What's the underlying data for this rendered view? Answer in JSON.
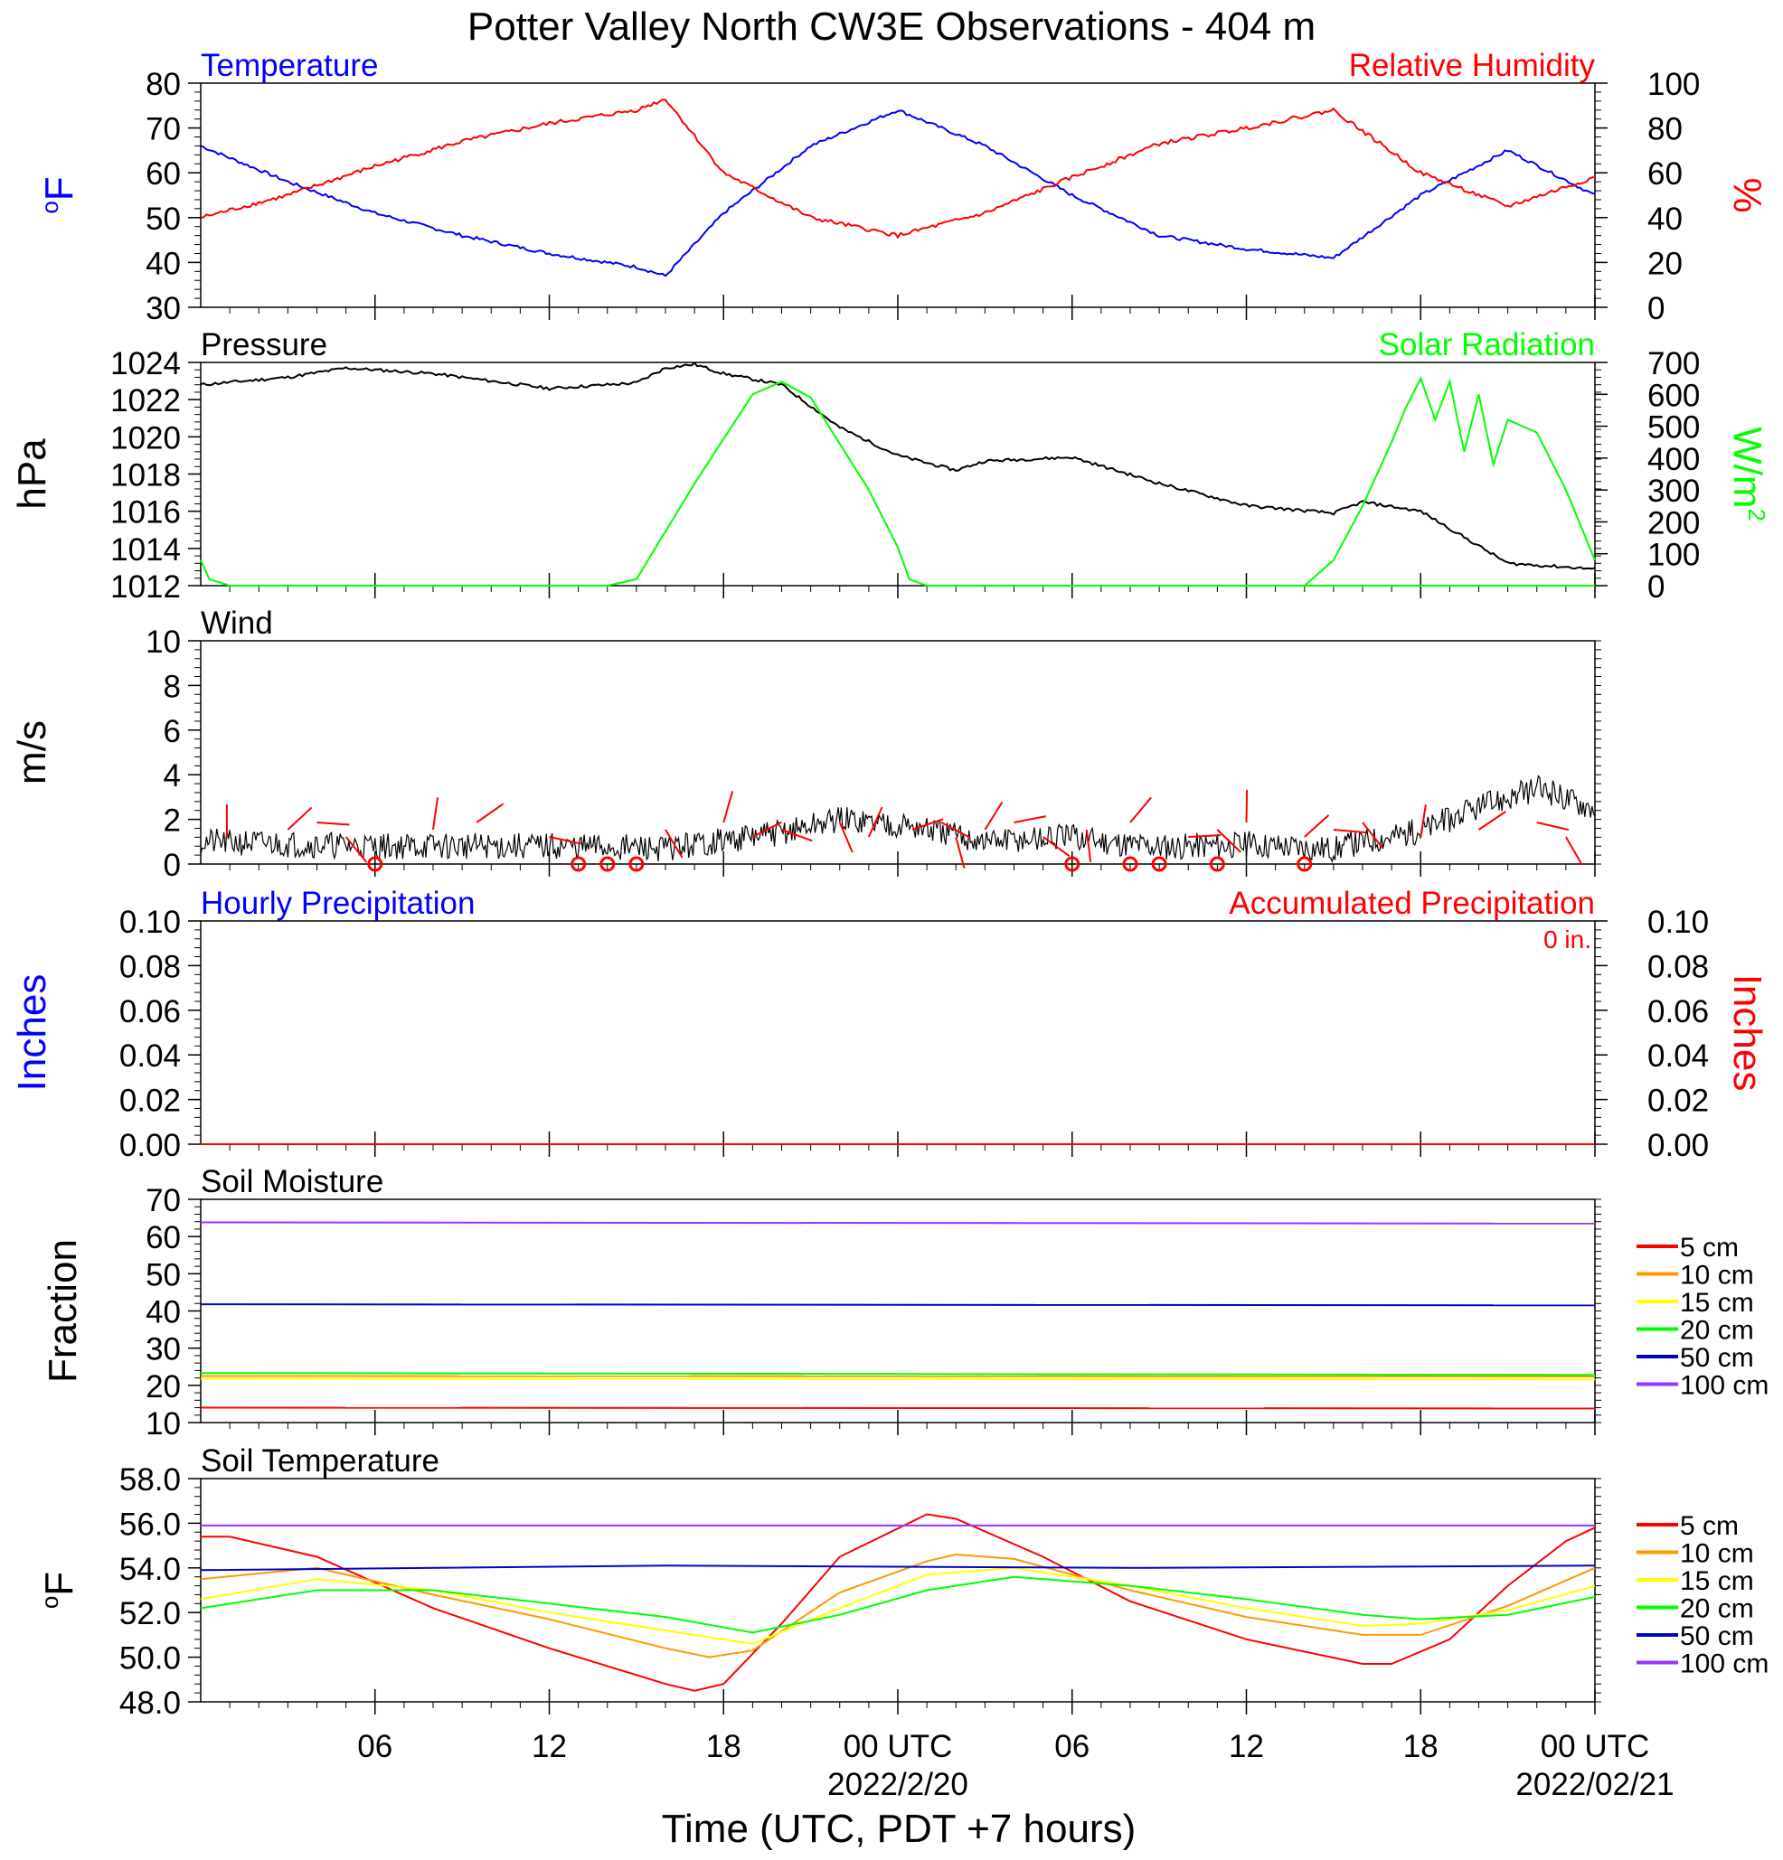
{
  "title": "Potter Valley North CW3E Observations - 404 m",
  "xlabel": "Time (UTC, PDT +7 hours)",
  "x_ticks": [
    {
      "label": "06",
      "date": ""
    },
    {
      "label": "12",
      "date": ""
    },
    {
      "label": "18",
      "date": ""
    },
    {
      "label": "00 UTC",
      "date": "2022/2/20"
    },
    {
      "label": "06",
      "date": ""
    },
    {
      "label": "12",
      "date": ""
    },
    {
      "label": "18",
      "date": ""
    },
    {
      "label": "00 UTC",
      "date": "2022/02/21"
    }
  ],
  "colors": {
    "blue": "#0000ff",
    "red": "#ff0000",
    "green": "#00ff00",
    "black": "#000000",
    "orange": "#ff9900",
    "yellow": "#ffff00",
    "navy": "#0000cc",
    "purple": "#9933ff"
  },
  "legend_soil": [
    {
      "label": "5 cm",
      "color": "#ff0000"
    },
    {
      "label": "10 cm",
      "color": "#ff9900"
    },
    {
      "label": "15 cm",
      "color": "#ffff00"
    },
    {
      "label": "20 cm",
      "color": "#00ff00"
    },
    {
      "label": "50 cm",
      "color": "#0000cc"
    },
    {
      "label": "100 cm",
      "color": "#9933ff"
    }
  ],
  "accum_value_label": "0 in.",
  "chart_data": [
    {
      "type": "line",
      "left_title": "Temperature",
      "right_title": "Relative Humidity",
      "ylabel_left": "oF",
      "ylabel_right": "%",
      "ylim_left": [
        30,
        80
      ],
      "ylim_right": [
        0,
        100
      ],
      "yticks_left": [
        "30",
        "40",
        "50",
        "60",
        "70",
        "80"
      ],
      "yticks_right": [
        "0",
        "20",
        "40",
        "60",
        "80",
        "100"
      ],
      "x_hours": [
        0,
        3,
        6,
        9,
        12,
        15,
        16,
        18,
        21,
        24,
        27,
        30,
        33,
        36,
        39,
        42,
        45,
        48
      ],
      "series": [
        {
          "name": "Temperature",
          "axis": "left",
          "color": "#0000ff",
          "values": [
            66,
            58,
            51,
            46,
            42,
            39,
            37,
            51,
            66,
            74,
            66,
            55,
            46,
            43,
            41,
            55,
            65,
            55
          ]
        },
        {
          "name": "Relative Humidity",
          "axis": "right",
          "color": "#ff0000",
          "values": [
            40,
            50,
            63,
            74,
            82,
            88,
            93,
            60,
            40,
            32,
            42,
            58,
            73,
            80,
            88,
            60,
            45,
            58
          ]
        }
      ]
    },
    {
      "type": "line",
      "left_title": "Pressure",
      "right_title": "Solar Radiation",
      "ylabel_left": "hPa",
      "ylabel_right": "W/m2",
      "ylim_left": [
        1012,
        1024
      ],
      "ylim_right": [
        0,
        700
      ],
      "yticks_left": [
        "1012",
        "1014",
        "1016",
        "1018",
        "1020",
        "1022",
        "1024"
      ],
      "yticks_right": [
        "0",
        "100",
        "200",
        "300",
        "400",
        "500",
        "600",
        "700"
      ],
      "series": [
        {
          "name": "Pressure",
          "axis": "left",
          "color": "#000000",
          "x": [
            0,
            3,
            5,
            8,
            12,
            15,
            16,
            17,
            18,
            20,
            22,
            24,
            26,
            27,
            30,
            33,
            36,
            39,
            40,
            42,
            45,
            48
          ],
          "values": [
            1022.8,
            1023.2,
            1023.7,
            1023.4,
            1022.6,
            1022.9,
            1023.7,
            1023.9,
            1023.4,
            1022.8,
            1020.5,
            1019.0,
            1018.2,
            1018.7,
            1018.9,
            1017.5,
            1016.3,
            1015.9,
            1016.5,
            1016.0,
            1013.2,
            1012.9
          ]
        },
        {
          "name": "Solar Radiation",
          "axis": "right",
          "color": "#00ff00",
          "x": [
            0,
            0.3,
            1,
            14,
            15,
            17,
            19,
            20,
            21,
            23,
            24,
            24.4,
            25,
            48
          ],
          "values": [
            80,
            20,
            0,
            0,
            20,
            320,
            600,
            640,
            590,
            300,
            120,
            20,
            0,
            0
          ],
          "x2": [
            38,
            39,
            40,
            41,
            41.5,
            42,
            42.5,
            43,
            43.5,
            44,
            44.5,
            45,
            46,
            47,
            48
          ],
          "values2": [
            0,
            80,
            250,
            450,
            560,
            650,
            520,
            640,
            420,
            600,
            380,
            520,
            480,
            300,
            80
          ]
        }
      ]
    },
    {
      "type": "line",
      "left_title": "Wind",
      "ylabel_left": "m/s",
      "ylim_left": [
        0,
        10
      ],
      "yticks_left": [
        "0",
        "2",
        "4",
        "6",
        "8",
        "10"
      ],
      "series": [
        {
          "name": "Wind",
          "axis": "left",
          "color": "#000000",
          "x": [
            0,
            6,
            12,
            16,
            20,
            22,
            24,
            27,
            30,
            32,
            33,
            36,
            39,
            40,
            42,
            44,
            46,
            48
          ],
          "values": [
            1.0,
            0.8,
            0.8,
            0.7,
            1.4,
            2.0,
            1.8,
            1.0,
            1.2,
            0.9,
            0.8,
            0.9,
            0.7,
            1.0,
            1.5,
            2.5,
            3.4,
            2.5
          ]
        }
      ],
      "calm_markers_hours": [
        6,
        13,
        14,
        15,
        30,
        32,
        33,
        35,
        38
      ]
    },
    {
      "type": "line",
      "left_title": "Hourly Precipitation",
      "right_title": "Accumulated Precipitation",
      "ylabel_left": "Inches",
      "ylabel_right": "Inches",
      "ylim_left": [
        0,
        0.1
      ],
      "ylim_right": [
        0,
        0.1
      ],
      "yticks_left": [
        "0.00",
        "0.02",
        "0.04",
        "0.06",
        "0.08",
        "0.10"
      ],
      "yticks_right": [
        "0.00",
        "0.02",
        "0.04",
        "0.06",
        "0.08",
        "0.10"
      ],
      "series": [
        {
          "name": "Hourly Precipitation",
          "axis": "left",
          "color": "#0000ff",
          "x": [
            0,
            48
          ],
          "values": [
            0,
            0
          ]
        },
        {
          "name": "Accumulated Precipitation",
          "axis": "right",
          "color": "#ff0000",
          "x": [
            0,
            48
          ],
          "values": [
            0,
            0
          ]
        }
      ]
    },
    {
      "type": "line",
      "left_title": "Soil Moisture",
      "ylabel_left": "Fraction",
      "ylim_left": [
        10,
        70
      ],
      "yticks_left": [
        "10",
        "20",
        "30",
        "40",
        "50",
        "60",
        "70"
      ],
      "series": [
        {
          "name": "5 cm",
          "axis": "left",
          "color": "#ff0000",
          "x": [
            0,
            48
          ],
          "values": [
            14.0,
            13.8
          ]
        },
        {
          "name": "10 cm",
          "axis": "left",
          "color": "#ff9900",
          "x": [
            0,
            48
          ],
          "values": [
            22.5,
            22.4
          ]
        },
        {
          "name": "15 cm",
          "axis": "left",
          "color": "#ffff00",
          "x": [
            0,
            48
          ],
          "values": [
            21.8,
            21.6
          ]
        },
        {
          "name": "20 cm",
          "axis": "left",
          "color": "#00ff00",
          "x": [
            0,
            48
          ],
          "values": [
            23.3,
            22.8
          ]
        },
        {
          "name": "50 cm",
          "axis": "left",
          "color": "#0000cc",
          "x": [
            0,
            48
          ],
          "values": [
            41.8,
            41.5
          ]
        },
        {
          "name": "100 cm",
          "axis": "left",
          "color": "#9933ff",
          "x": [
            0,
            48
          ],
          "values": [
            63.8,
            63.5
          ]
        }
      ]
    },
    {
      "type": "line",
      "left_title": "Soil Temperature",
      "ylabel_left": "oF",
      "ylim_left": [
        48,
        58
      ],
      "yticks_left": [
        "48.0",
        "50.0",
        "52.0",
        "54.0",
        "56.0",
        "58.0"
      ],
      "series": [
        {
          "name": "5 cm",
          "axis": "left",
          "color": "#ff0000",
          "x": [
            0,
            1,
            4,
            8,
            12,
            16,
            17,
            18,
            20,
            22,
            25,
            26,
            29,
            32,
            36,
            40,
            41,
            43,
            45,
            47,
            48
          ],
          "values": [
            55.4,
            55.4,
            54.5,
            52.2,
            50.4,
            48.8,
            48.5,
            48.8,
            51.5,
            54.5,
            56.4,
            56.2,
            54.5,
            52.5,
            50.8,
            49.7,
            49.7,
            50.8,
            53.2,
            55.2,
            55.8
          ]
        },
        {
          "name": "10 cm",
          "axis": "left",
          "color": "#ff9900",
          "x": [
            0,
            4,
            8,
            12,
            16,
            17.5,
            19,
            22,
            25,
            26,
            28,
            32,
            36,
            40,
            42,
            45,
            48
          ],
          "values": [
            53.5,
            54.0,
            52.8,
            51.7,
            50.4,
            50.0,
            50.3,
            52.9,
            54.3,
            54.6,
            54.4,
            53.0,
            51.8,
            51.0,
            51.0,
            52.3,
            54.0
          ]
        },
        {
          "name": "15 cm",
          "axis": "left",
          "color": "#ffff00",
          "x": [
            0,
            4,
            8,
            12,
            16,
            19,
            22,
            25,
            28,
            32,
            36,
            40,
            42,
            45,
            48
          ],
          "values": [
            52.6,
            53.5,
            53.0,
            52.0,
            51.2,
            50.6,
            52.2,
            53.7,
            54.0,
            53.2,
            52.2,
            51.4,
            51.5,
            52.1,
            53.2
          ]
        },
        {
          "name": "20 cm",
          "axis": "left",
          "color": "#00ff00",
          "x": [
            0,
            4,
            8,
            12,
            16,
            19,
            22,
            25,
            28,
            32,
            36,
            40,
            42,
            45,
            48
          ],
          "values": [
            52.2,
            53.0,
            53.0,
            52.4,
            51.8,
            51.1,
            51.9,
            53.0,
            53.6,
            53.2,
            52.6,
            51.9,
            51.7,
            51.9,
            52.7
          ]
        },
        {
          "name": "50 cm",
          "axis": "left",
          "color": "#0000cc",
          "x": [
            0,
            16,
            32,
            48
          ],
          "values": [
            53.9,
            54.1,
            54.0,
            54.1
          ]
        },
        {
          "name": "100 cm",
          "axis": "left",
          "color": "#9933ff",
          "x": [
            0,
            16,
            32,
            48
          ],
          "values": [
            55.9,
            55.9,
            55.9,
            55.9
          ]
        }
      ]
    }
  ]
}
